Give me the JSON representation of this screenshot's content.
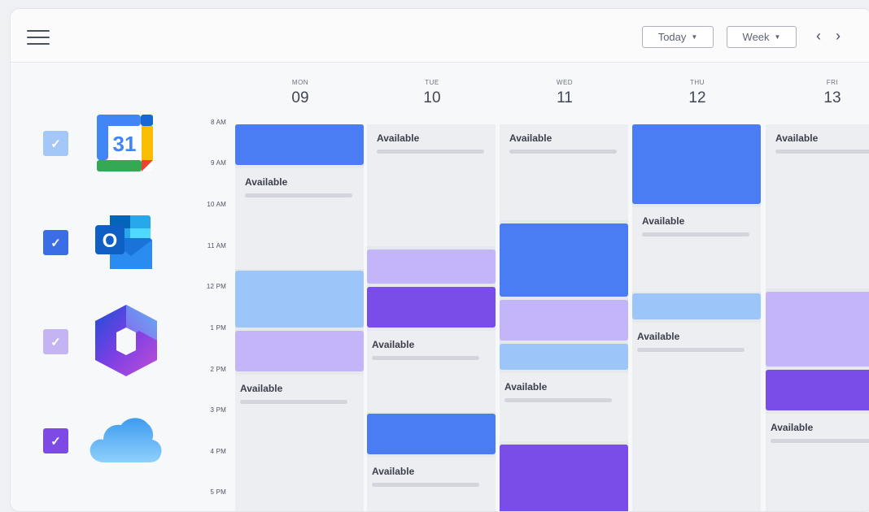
{
  "toolbar": {
    "today_label": "Today",
    "week_label": "Week",
    "prev_glyph": "‹",
    "next_glyph": "›"
  },
  "calendars": [
    {
      "name": "google-calendar",
      "icon_text": "31",
      "checked": true,
      "checkbox_color": "#a3c8f8"
    },
    {
      "name": "outlook",
      "icon_text": "O",
      "checked": true,
      "checkbox_color": "#3b6de6"
    },
    {
      "name": "microsoft-365",
      "icon_text": "",
      "checked": true,
      "checkbox_color": "#c4b4f4"
    },
    {
      "name": "icloud",
      "icon_text": "",
      "checked": true,
      "checkbox_color": "#7d4ae6"
    }
  ],
  "times": [
    "8 AM",
    "9 AM",
    "10 AM",
    "11 AM",
    "12 PM",
    "1 PM",
    "2 PM",
    "3 PM",
    "4 PM",
    "5 PM"
  ],
  "days": [
    {
      "dow": "MON",
      "num": "09"
    },
    {
      "dow": "TUE",
      "num": "10"
    },
    {
      "dow": "WED",
      "num": "11"
    },
    {
      "dow": "THU",
      "num": "12"
    },
    {
      "dow": "FRI",
      "num": "13"
    }
  ],
  "available_label": "Available",
  "colors": {
    "blue": "#4a7df4",
    "light_blue": "#9cc5f9",
    "lavender": "#c3b5f7",
    "purple": "#7b4de8"
  }
}
